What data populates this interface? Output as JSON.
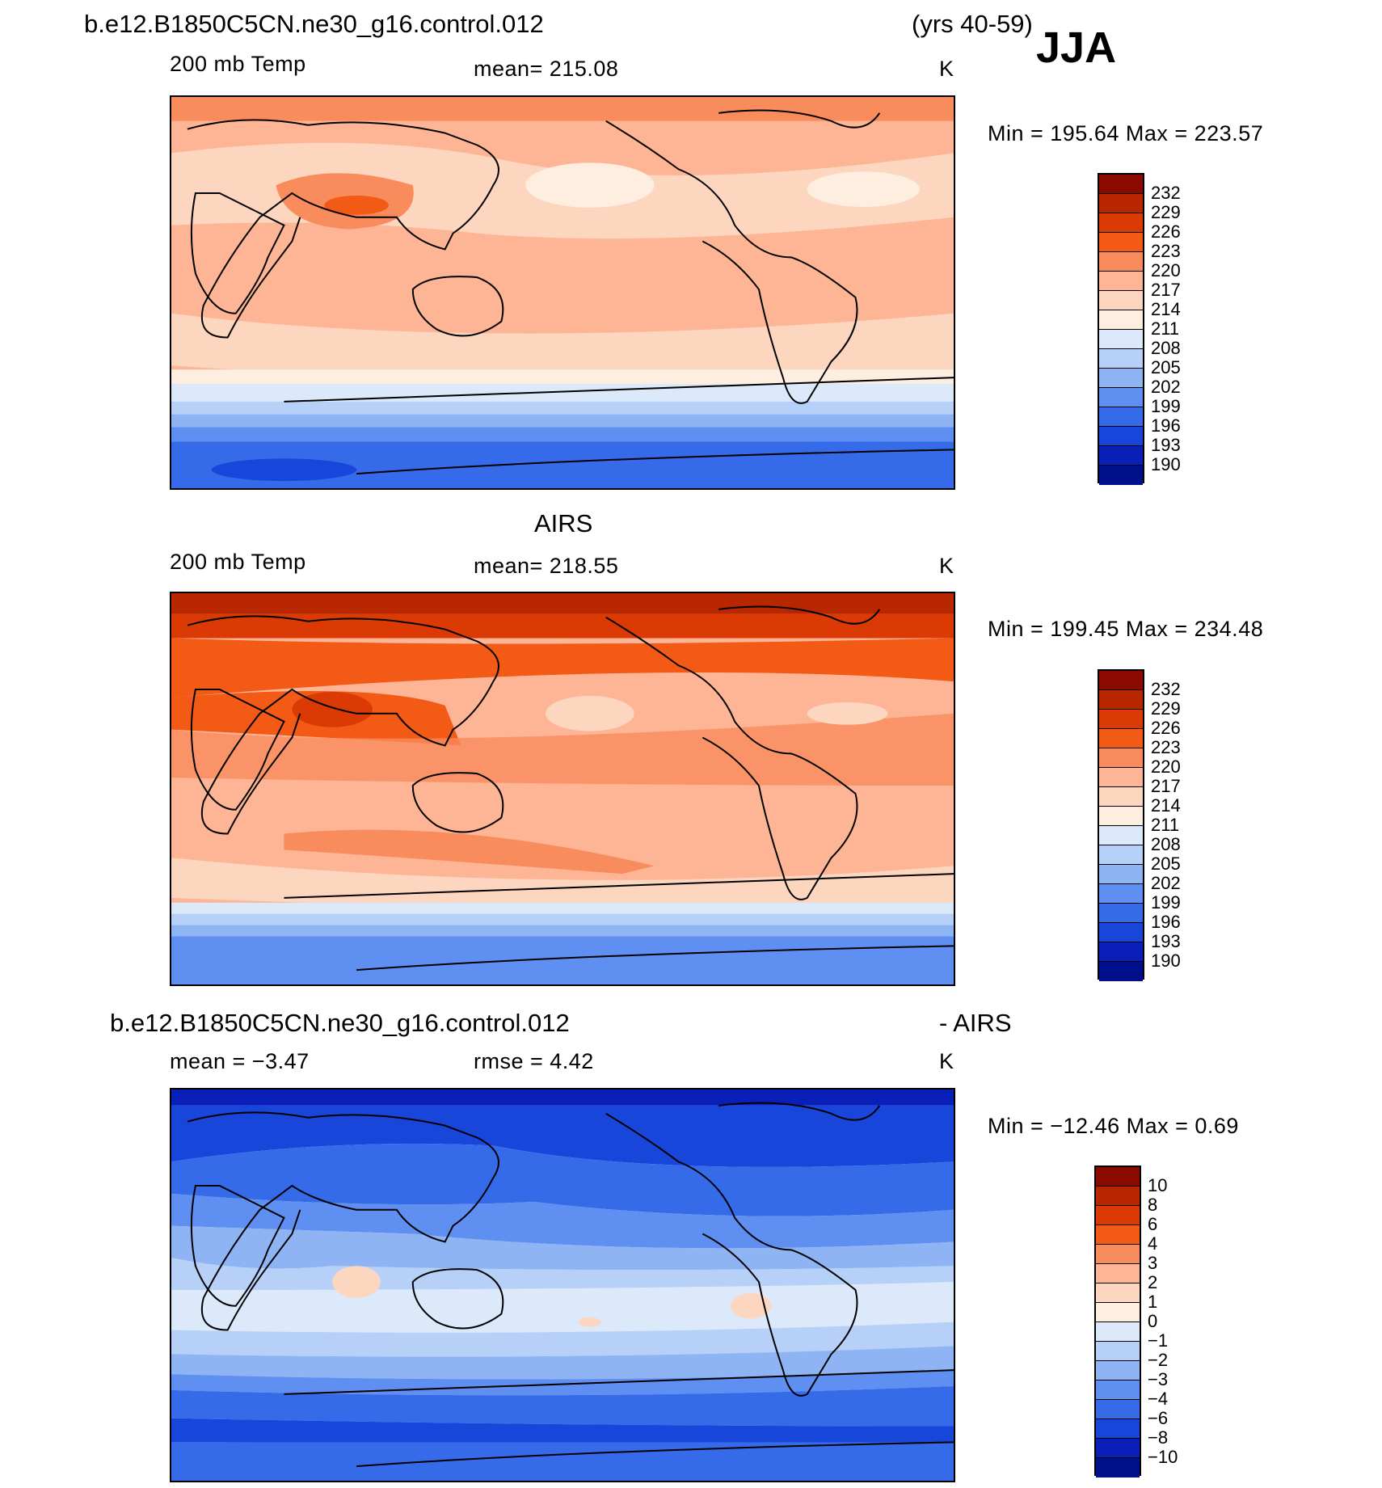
{
  "header": {
    "case_name": "b.e12.B1850C5CN.ne30_g16.control.012",
    "years": "(yrs 40-59)",
    "season": "JJA"
  },
  "panels": [
    {
      "id": "model",
      "title": "",
      "variable": "200 mb Temp",
      "stat": "mean=  215.08",
      "units": "K",
      "minmax": "Min  =  195.64  Max  =  223.57",
      "colorbar": {
        "labels": [
          "232",
          "229",
          "226",
          "223",
          "220",
          "217",
          "214",
          "211",
          "208",
          "205",
          "202",
          "199",
          "196",
          "193",
          "190"
        ],
        "colors": [
          "#8a0a00",
          "#b82700",
          "#dc3a05",
          "#f25a15",
          "#f98c5c",
          "#fdb596",
          "#fdd6bf",
          "#fdeee0",
          "#dbe9fb",
          "#b7d0f8",
          "#8fb4f4",
          "#5f8ff0",
          "#356ae8",
          "#1846da",
          "#0a1fb8",
          "#00108a"
        ]
      }
    },
    {
      "id": "obs",
      "title": "AIRS",
      "variable": "200 mb Temp",
      "stat": "mean=  218.55",
      "units": "K",
      "minmax": "Min  =  199.45  Max  =  234.48",
      "colorbar": {
        "labels": [
          "232",
          "229",
          "226",
          "223",
          "220",
          "217",
          "214",
          "211",
          "208",
          "205",
          "202",
          "199",
          "196",
          "193",
          "190"
        ],
        "colors": [
          "#8a0a00",
          "#b82700",
          "#dc3a05",
          "#f25a15",
          "#f98c5c",
          "#fdb596",
          "#fdd6bf",
          "#fdeee0",
          "#dbe9fb",
          "#b7d0f8",
          "#8fb4f4",
          "#5f8ff0",
          "#356ae8",
          "#1846da",
          "#0a1fb8",
          "#00108a"
        ]
      }
    },
    {
      "id": "diff",
      "title_left": "b.e12.B1850C5CN.ne30_g16.control.012",
      "title_right": "- AIRS",
      "stat_mean": "mean  =    −3.47",
      "stat_rmse": "rmse  =     4.42",
      "units": "K",
      "minmax": "Min  =  −12.46  Max  =     0.69",
      "colorbar": {
        "labels": [
          "10",
          "8",
          "6",
          "4",
          "3",
          "2",
          "1",
          "0",
          "−1",
          "−2",
          "−3",
          "−4",
          "−6",
          "−8",
          "−10"
        ],
        "colors": [
          "#8a0a00",
          "#b82700",
          "#dc3a05",
          "#f25a15",
          "#f98c5c",
          "#fdb596",
          "#fdd6bf",
          "#fdeee0",
          "#dbe9fb",
          "#b7d0f8",
          "#8fb4f4",
          "#5f8ff0",
          "#356ae8",
          "#1846da",
          "#0a1fb8",
          "#00108a"
        ]
      }
    }
  ]
}
